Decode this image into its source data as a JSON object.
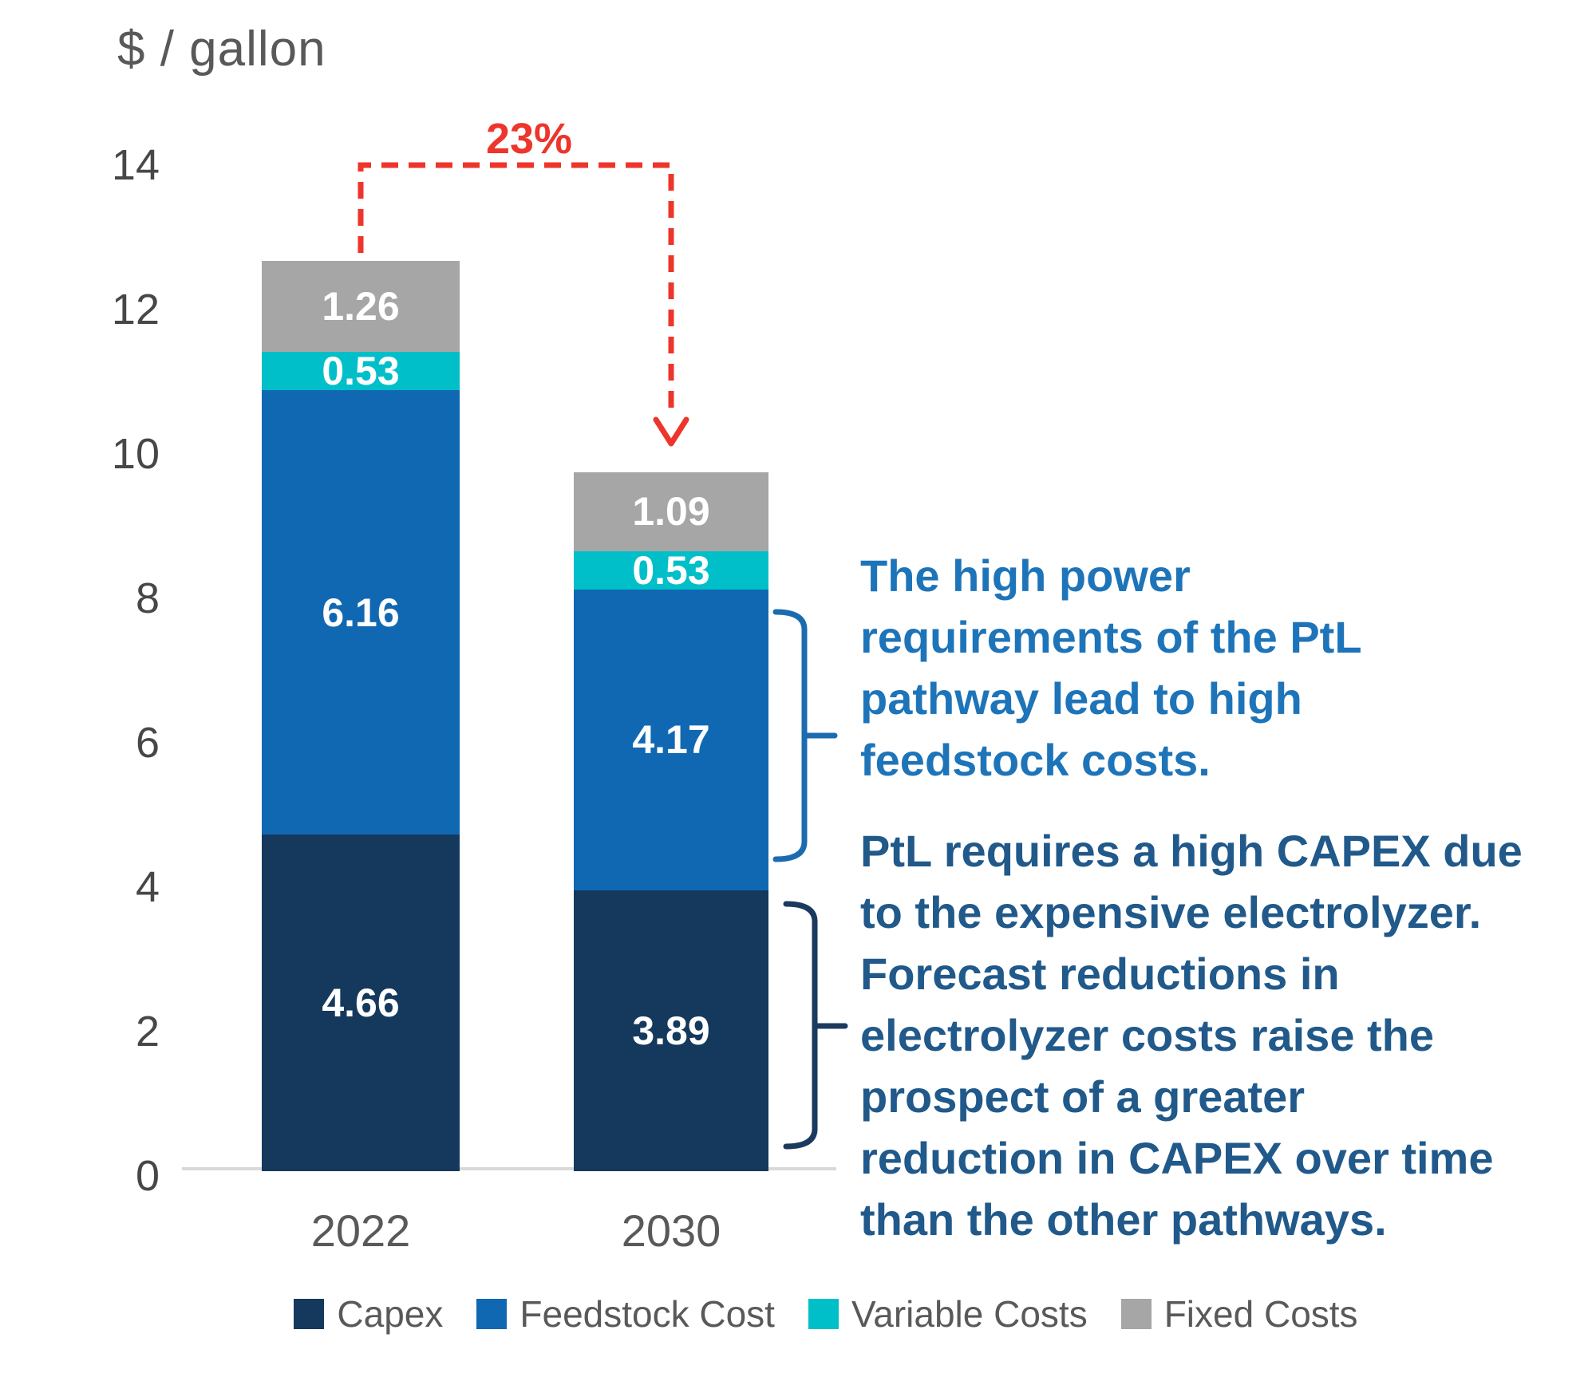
{
  "title": "$ / gallon",
  "chart_data": {
    "type": "bar",
    "stacked": true,
    "title": "",
    "ylabel": "$ / gallon",
    "xlabel": "",
    "ylim": [
      0,
      14
    ],
    "yticks": [
      0,
      2,
      4,
      6,
      8,
      10,
      12,
      14
    ],
    "grid": false,
    "legend_position": "bottom",
    "categories": [
      "2022",
      "2030"
    ],
    "series": [
      {
        "name": "Capex",
        "color": "#15395C",
        "values": [
          4.66,
          3.89
        ]
      },
      {
        "name": "Feedstock Cost",
        "color": "#1168B2",
        "values": [
          6.16,
          4.17
        ]
      },
      {
        "name": "Variable Costs",
        "color": "#00BFC8",
        "values": [
          0.53,
          0.53
        ]
      },
      {
        "name": "Fixed Costs",
        "color": "#A6A6A6",
        "values": [
          1.26,
          1.09
        ]
      }
    ],
    "totals": [
      12.61,
      9.68
    ],
    "annotation_arrow": {
      "label": "23%",
      "color": "#EE352B",
      "from_category": "2022",
      "to_category": "2030",
      "meaning": "cost reduction from 2022 to 2030"
    }
  },
  "annotations": {
    "feedstock_note": {
      "color": "#1E74B9",
      "brace_color": "#1C6BB0",
      "lines": [
        "The high power",
        "requirements of the PtL",
        "pathway lead to high",
        "feedstock costs."
      ]
    },
    "capex_note": {
      "color": "#20598A",
      "brace_color": "#1B3A5E",
      "lines": [
        "PtL requires a high CAPEX due",
        "to the expensive electrolyzer.",
        "Forecast reductions in",
        "electrolyzer costs raise the",
        "prospect of a greater",
        "reduction in CAPEX over time",
        "than the other pathways."
      ]
    }
  }
}
